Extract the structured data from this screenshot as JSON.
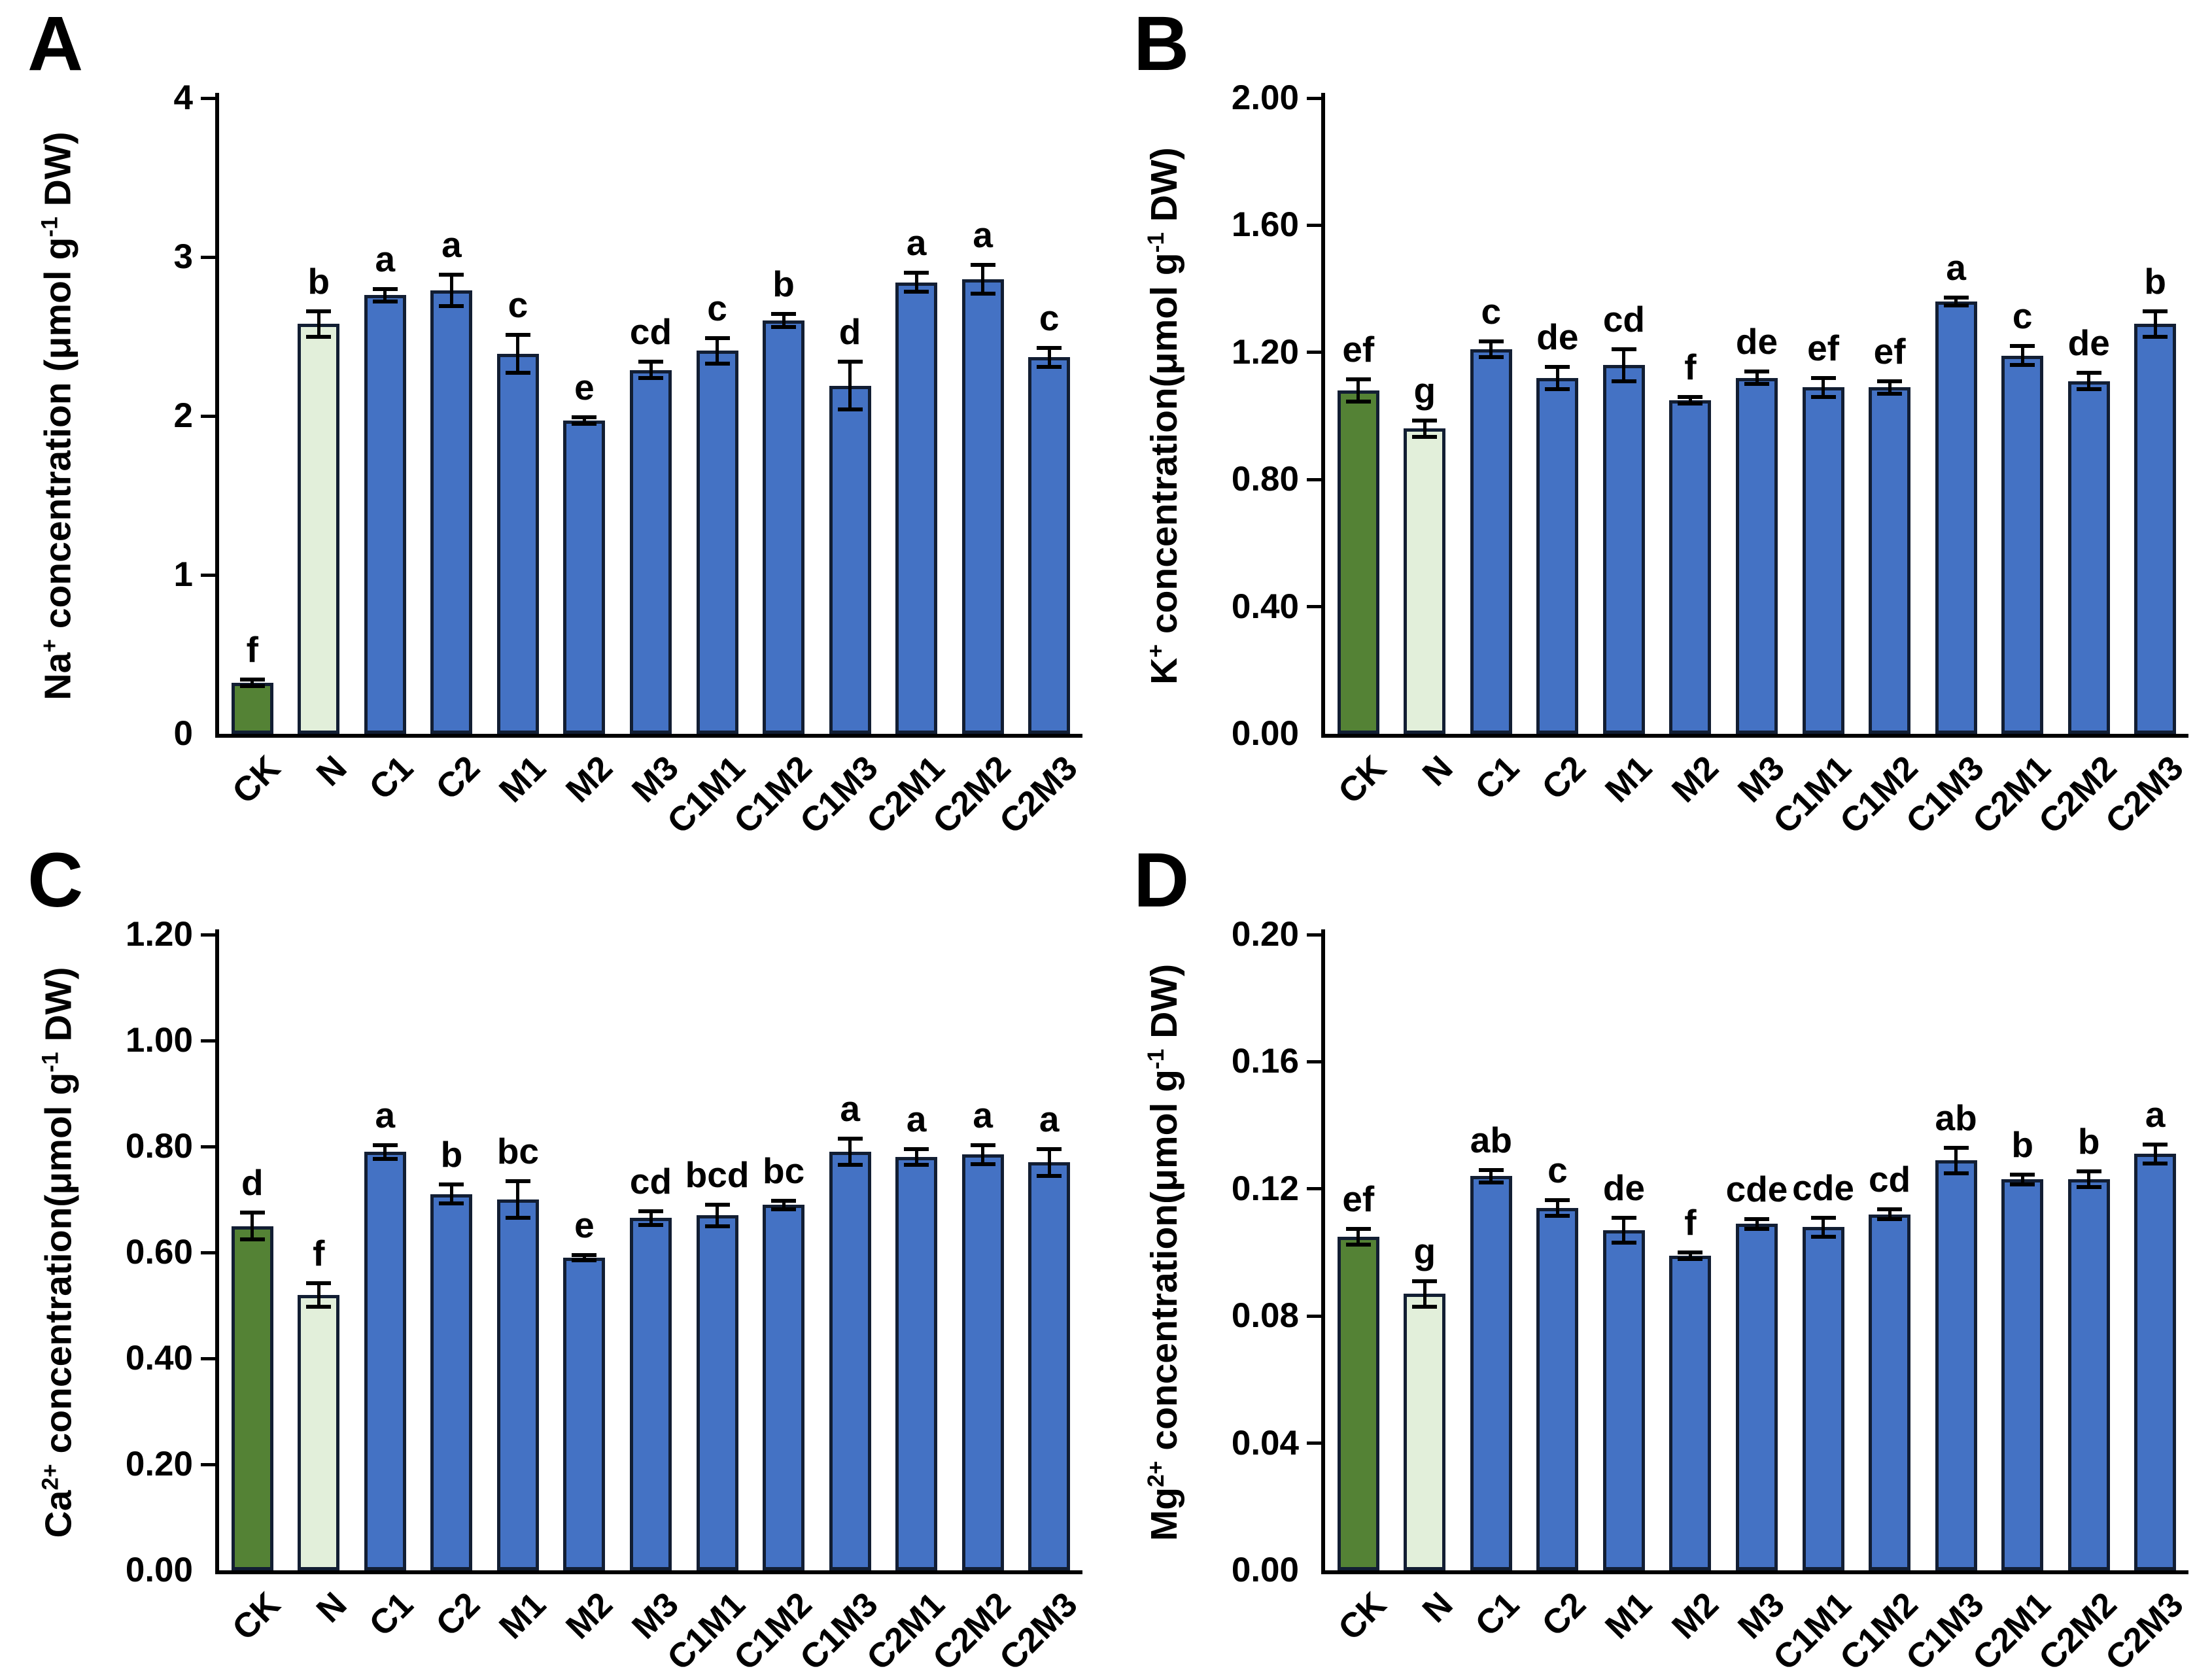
{
  "figure": {
    "background": "#FFFFFF",
    "colors": {
      "control_dark_green_fill": "#548235",
      "nacl_light_green_fill": "#E2EFDA",
      "treatment_blue_fill": "#4472C4",
      "bar_border": "#121E33",
      "error_bar": "#000000",
      "text": "#000000"
    },
    "categories": [
      "CK",
      "N",
      "C1",
      "C2",
      "M1",
      "M2",
      "M3",
      "C1M1",
      "C1M2",
      "C1M3",
      "C2M1",
      "C2M2",
      "C2M3"
    ],
    "legend": "none",
    "grid": "off"
  },
  "chart_data": [
    {
      "type": "bar",
      "panel_label": "A",
      "ylabel": "Na+ concentration (μmol g-1 DW)",
      "ylabel_segments": [
        {
          "t": "Na"
        },
        {
          "t": "+",
          "sup": true
        },
        {
          "t": " concentration (μmol g"
        },
        {
          "t": "-1",
          "sup": true
        },
        {
          "t": " DW)"
        }
      ],
      "xlabel": "",
      "ylim": [
        0,
        4
      ],
      "yticks": [
        {
          "value": 0,
          "label": "0"
        },
        {
          "value": 1,
          "label": "1"
        },
        {
          "value": 2,
          "label": "2"
        },
        {
          "value": 3,
          "label": "3"
        },
        {
          "value": 4,
          "label": "4"
        }
      ],
      "categories": [
        "CK",
        "N",
        "C1",
        "C2",
        "M1",
        "M2",
        "M3",
        "C1M1",
        "C1M2",
        "C1M3",
        "C2M1",
        "C2M2",
        "C2M3"
      ],
      "values": [
        0.32,
        2.58,
        2.76,
        2.79,
        2.39,
        1.97,
        2.29,
        2.41,
        2.6,
        2.19,
        2.84,
        2.86,
        2.37
      ],
      "errors": [
        0.02,
        0.08,
        0.04,
        0.1,
        0.12,
        0.02,
        0.05,
        0.08,
        0.04,
        0.15,
        0.06,
        0.09,
        0.06
      ],
      "letters": [
        "f",
        "b",
        "a",
        "a",
        "c",
        "e",
        "cd",
        "c",
        "b",
        "d",
        "a",
        "a",
        "c"
      ]
    },
    {
      "type": "bar",
      "panel_label": "B",
      "ylabel": "K+ concentration(μmol g-1 DW)",
      "ylabel_segments": [
        {
          "t": "K"
        },
        {
          "t": "+",
          "sup": true
        },
        {
          "t": " concentration(μmol g"
        },
        {
          "t": "-1",
          "sup": true
        },
        {
          "t": " DW)"
        }
      ],
      "xlabel": "",
      "ylim": [
        0,
        2.0
      ],
      "yticks": [
        {
          "value": 0,
          "label": "0.00"
        },
        {
          "value": 0.4,
          "label": "0.40"
        },
        {
          "value": 0.8,
          "label": "0.80"
        },
        {
          "value": 1.2,
          "label": "1.20"
        },
        {
          "value": 1.6,
          "label": "1.60"
        },
        {
          "value": 2.0,
          "label": "2.00"
        }
      ],
      "categories": [
        "CK",
        "N",
        "C1",
        "C2",
        "M1",
        "M2",
        "M3",
        "C1M1",
        "C1M2",
        "C1M3",
        "C2M1",
        "C2M2",
        "C2M3"
      ],
      "values": [
        1.08,
        0.96,
        1.21,
        1.12,
        1.16,
        1.05,
        1.12,
        1.09,
        1.09,
        1.36,
        1.19,
        1.11,
        1.29
      ],
      "errors": [
        0.035,
        0.025,
        0.025,
        0.035,
        0.05,
        0.01,
        0.02,
        0.03,
        0.02,
        0.012,
        0.03,
        0.025,
        0.04
      ],
      "letters": [
        "ef",
        "g",
        "c",
        "de",
        "cd",
        "f",
        "de",
        "ef",
        "ef",
        "a",
        "c",
        "de",
        "b"
      ]
    },
    {
      "type": "bar",
      "panel_label": "C",
      "ylabel": "Ca2+ concentration(μmol g-1 DW)",
      "ylabel_segments": [
        {
          "t": "Ca"
        },
        {
          "t": "2+",
          "sup": true
        },
        {
          "t": " concentration(μmol g"
        },
        {
          "t": "-1",
          "sup": true
        },
        {
          "t": " DW)"
        }
      ],
      "xlabel": "",
      "ylim": [
        0,
        1.2
      ],
      "yticks": [
        {
          "value": 0,
          "label": "0.00"
        },
        {
          "value": 0.2,
          "label": "0.20"
        },
        {
          "value": 0.4,
          "label": "0.40"
        },
        {
          "value": 0.6,
          "label": "0.60"
        },
        {
          "value": 0.8,
          "label": "0.80"
        },
        {
          "value": 1.0,
          "label": "1.00"
        },
        {
          "value": 1.2,
          "label": "1.20"
        }
      ],
      "categories": [
        "CK",
        "N",
        "C1",
        "C2",
        "M1",
        "M2",
        "M3",
        "C1M1",
        "C1M2",
        "C1M3",
        "C2M1",
        "C2M2",
        "C2M3"
      ],
      "values": [
        0.65,
        0.52,
        0.79,
        0.71,
        0.7,
        0.59,
        0.665,
        0.67,
        0.69,
        0.79,
        0.78,
        0.785,
        0.77
      ],
      "errors": [
        0.025,
        0.022,
        0.013,
        0.018,
        0.035,
        0.005,
        0.013,
        0.02,
        0.008,
        0.025,
        0.015,
        0.018,
        0.025
      ],
      "letters": [
        "d",
        "f",
        "a",
        "b",
        "bc",
        "e",
        "cd",
        "bcd",
        "bc",
        "a",
        "a",
        "a",
        "a"
      ]
    },
    {
      "type": "bar",
      "panel_label": "D",
      "ylabel": "Mg2+ concentration(μmol g-1 DW)",
      "ylabel_segments": [
        {
          "t": "Mg"
        },
        {
          "t": "2+",
          "sup": true
        },
        {
          "t": " concentration(μmol g"
        },
        {
          "t": "-1",
          "sup": true
        },
        {
          "t": " DW)"
        }
      ],
      "xlabel": "",
      "ylim": [
        0,
        0.2
      ],
      "yticks": [
        {
          "value": 0,
          "label": "0.00"
        },
        {
          "value": 0.04,
          "label": "0.04"
        },
        {
          "value": 0.08,
          "label": "0.08"
        },
        {
          "value": 0.12,
          "label": "0.12"
        },
        {
          "value": 0.16,
          "label": "0.16"
        },
        {
          "value": 0.2,
          "label": "0.20"
        }
      ],
      "categories": [
        "CK",
        "N",
        "C1",
        "C2",
        "M1",
        "M2",
        "M3",
        "C1M1",
        "C1M2",
        "C1M3",
        "C2M1",
        "C2M2",
        "C2M3"
      ],
      "values": [
        0.105,
        0.087,
        0.124,
        0.114,
        0.107,
        0.099,
        0.109,
        0.108,
        0.112,
        0.129,
        0.123,
        0.123,
        0.131
      ],
      "errors": [
        0.0025,
        0.004,
        0.002,
        0.0025,
        0.004,
        0.001,
        0.0015,
        0.003,
        0.0015,
        0.004,
        0.0015,
        0.0025,
        0.003
      ],
      "letters": [
        "ef",
        "g",
        "ab",
        "c",
        "de",
        "f",
        "cde",
        "cde",
        "cd",
        "ab",
        "b",
        "b",
        "a"
      ]
    }
  ]
}
